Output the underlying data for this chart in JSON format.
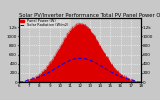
{
  "title": "Solar PV/Inverter Performance Total PV Panel Power Output & Solar Radiation",
  "legend": [
    "Panel Power (W)",
    "Solar Radiation (W/m2)"
  ],
  "background_color": "#c8c8c8",
  "plot_bg_color": "#c8c8c8",
  "n_points": 288,
  "red_fill_color": "#dd0000",
  "red_line_color": "#dd0000",
  "blue_line_color": "#0000ee",
  "ylim_left": [
    0,
    1400
  ],
  "ylim_right": [
    0,
    1400
  ],
  "yticks_left": [
    0,
    200,
    400,
    600,
    800,
    1000,
    1200
  ],
  "ytick_labels_left": [
    "0",
    "200",
    "400",
    "600",
    "800",
    "1000",
    "1.2k"
  ],
  "yticks_right": [
    0,
    200,
    400,
    600,
    800,
    1000,
    1200
  ],
  "ytick_labels_right": [
    "0",
    "200",
    "400",
    "600",
    "800",
    "1000",
    "1.2k"
  ],
  "xtick_labels": [
    "6",
    "7",
    "8",
    "9",
    "10",
    "11",
    "12",
    "13",
    "14",
    "15",
    "16",
    "17",
    "18"
  ],
  "grid_color": "#ffffff",
  "title_fontsize": 3.8,
  "label_fontsize": 3.0,
  "legend_fontsize": 2.5
}
